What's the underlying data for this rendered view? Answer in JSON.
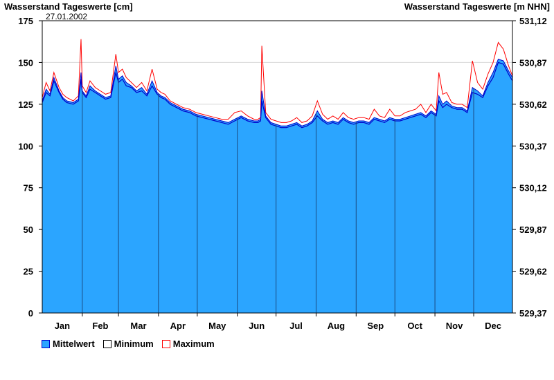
{
  "chart_data": {
    "type": "area",
    "title_left": "Wasserstand Tageswerte [cm]",
    "title_right": "Wasserstand Tageswerte [m NHN]",
    "date_label": "27.01.2002",
    "y_left": {
      "min": 0,
      "max": 175,
      "ticks": [
        "0",
        "25",
        "50",
        "75",
        "100",
        "125",
        "150",
        "175"
      ]
    },
    "y_right": {
      "ticks": [
        "529,37",
        "529,62",
        "529,87",
        "530,12",
        "530,37",
        "530,62",
        "530,87",
        "531,12"
      ]
    },
    "months": [
      "Jan",
      "Feb",
      "Mar",
      "Apr",
      "May",
      "Jun",
      "Jul",
      "Aug",
      "Sep",
      "Oct",
      "Nov",
      "Dec"
    ],
    "grid": true,
    "colors": {
      "mean": "#2BA5FF",
      "mean_line": "#0000CC",
      "min": "#000000",
      "max": "#FF0000",
      "month_line": "#1a4a80"
    },
    "series": [
      {
        "name": "Mittelwert",
        "key": "mean",
        "x": [
          1,
          4,
          7,
          10,
          14,
          17,
          20,
          25,
          29,
          31,
          32,
          35,
          38,
          42,
          46,
          50,
          54,
          58,
          60,
          63,
          66,
          70,
          74,
          78,
          82,
          86,
          90,
          93,
          96,
          100,
          105,
          110,
          115,
          120,
          125,
          130,
          135,
          140,
          145,
          150,
          155,
          160,
          165,
          168,
          170,
          171,
          174,
          178,
          182,
          186,
          190,
          194,
          198,
          202,
          206,
          210,
          214,
          218,
          222,
          226,
          230,
          234,
          238,
          242,
          246,
          250,
          254,
          258,
          262,
          266,
          270,
          274,
          278,
          282,
          286,
          290,
          294,
          298,
          302,
          306,
          308,
          311,
          314,
          318,
          322,
          326,
          330,
          334,
          338,
          342,
          346,
          350,
          354,
          358,
          362,
          365
        ],
        "y": [
          127,
          134,
          131,
          141,
          133,
          129,
          127,
          126,
          128,
          144,
          133,
          130,
          136,
          133,
          131,
          129,
          130,
          148,
          140,
          142,
          138,
          136,
          133,
          135,
          131,
          139,
          132,
          130,
          129,
          126,
          124,
          122,
          121,
          119,
          118,
          117,
          116,
          115,
          114,
          116,
          118,
          116,
          115,
          115,
          116,
          133,
          118,
          114,
          113,
          112,
          112,
          113,
          114,
          112,
          113,
          115,
          121,
          116,
          114,
          115,
          114,
          117,
          115,
          114,
          115,
          115,
          114,
          117,
          116,
          115,
          117,
          116,
          116,
          117,
          118,
          119,
          120,
          118,
          121,
          119,
          130,
          125,
          127,
          124,
          123,
          123,
          121,
          135,
          133,
          130,
          138,
          144,
          152,
          151,
          145,
          141
        ]
      },
      {
        "name": "Minimum",
        "key": "min",
        "x": [
          1,
          4,
          7,
          10,
          14,
          17,
          20,
          25,
          29,
          31,
          32,
          35,
          38,
          42,
          46,
          50,
          54,
          58,
          60,
          63,
          66,
          70,
          74,
          78,
          82,
          86,
          90,
          93,
          96,
          100,
          105,
          110,
          115,
          120,
          125,
          130,
          135,
          140,
          145,
          150,
          155,
          160,
          165,
          168,
          170,
          171,
          174,
          178,
          182,
          186,
          190,
          194,
          198,
          202,
          206,
          210,
          214,
          218,
          222,
          226,
          230,
          234,
          238,
          242,
          246,
          250,
          254,
          258,
          262,
          266,
          270,
          274,
          278,
          282,
          286,
          290,
          294,
          298,
          302,
          306,
          308,
          311,
          314,
          318,
          322,
          326,
          330,
          334,
          338,
          342,
          346,
          350,
          354,
          358,
          362,
          365
        ],
        "y": [
          126,
          132,
          130,
          139,
          132,
          128,
          126,
          125,
          127,
          140,
          132,
          129,
          134,
          132,
          130,
          128,
          129,
          144,
          138,
          140,
          136,
          135,
          132,
          133,
          130,
          136,
          131,
          129,
          128,
          125,
          123,
          121,
          120,
          118,
          117,
          116,
          115,
          114,
          113,
          115,
          117,
          115,
          114,
          114,
          115,
          127,
          117,
          113,
          112,
          111,
          111,
          112,
          113,
          111,
          112,
          114,
          118,
          115,
          113,
          114,
          113,
          116,
          114,
          113,
          114,
          114,
          113,
          116,
          115,
          114,
          116,
          115,
          115,
          116,
          117,
          118,
          119,
          117,
          120,
          118,
          127,
          123,
          125,
          123,
          122,
          122,
          120,
          132,
          131,
          129,
          136,
          141,
          150,
          149,
          143,
          139
        ]
      },
      {
        "name": "Maximum",
        "key": "max",
        "x": [
          1,
          4,
          7,
          10,
          14,
          17,
          20,
          25,
          29,
          31,
          32,
          35,
          38,
          42,
          46,
          50,
          54,
          58,
          60,
          63,
          66,
          70,
          74,
          78,
          82,
          86,
          90,
          93,
          96,
          100,
          105,
          110,
          115,
          120,
          125,
          130,
          135,
          140,
          145,
          150,
          155,
          160,
          165,
          168,
          170,
          171,
          174,
          178,
          182,
          186,
          190,
          194,
          198,
          202,
          206,
          210,
          214,
          218,
          222,
          226,
          230,
          234,
          238,
          242,
          246,
          250,
          254,
          258,
          262,
          266,
          270,
          274,
          278,
          282,
          286,
          290,
          294,
          298,
          302,
          306,
          308,
          311,
          314,
          318,
          322,
          326,
          330,
          334,
          338,
          342,
          346,
          350,
          354,
          358,
          362,
          365
        ],
        "y": [
          129,
          138,
          133,
          144,
          135,
          131,
          129,
          127,
          130,
          164,
          136,
          132,
          139,
          135,
          133,
          131,
          132,
          155,
          144,
          146,
          141,
          138,
          135,
          138,
          133,
          146,
          134,
          132,
          131,
          127,
          125,
          123,
          122,
          120,
          119,
          118,
          117,
          116,
          116,
          120,
          121,
          118,
          116,
          116,
          117,
          160,
          120,
          116,
          115,
          114,
          114,
          115,
          117,
          114,
          115,
          118,
          127,
          119,
          116,
          118,
          116,
          120,
          117,
          116,
          117,
          117,
          116,
          122,
          118,
          117,
          122,
          118,
          118,
          120,
          121,
          122,
          125,
          120,
          125,
          121,
          144,
          131,
          132,
          126,
          125,
          125,
          123,
          151,
          138,
          134,
          143,
          150,
          162,
          158,
          148,
          142
        ]
      }
    ]
  }
}
